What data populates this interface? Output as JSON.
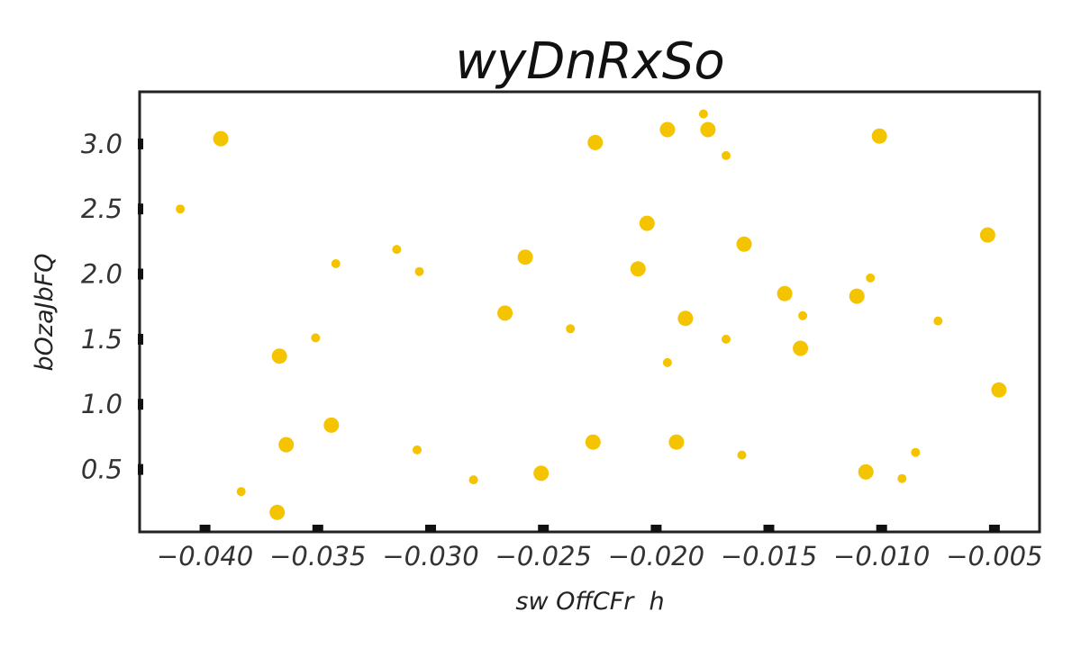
{
  "chart_data": {
    "type": "scatter",
    "title": "wyDnRxSo",
    "xlabel": "sw OffCFr  h",
    "ylabel": "bOzaJbFQ",
    "xlim": [
      -0.0429,
      -0.003
    ],
    "ylim": [
      0.02,
      3.4
    ],
    "xticks": [
      -0.04,
      -0.035,
      -0.03,
      -0.025,
      -0.02,
      -0.015,
      -0.01,
      -0.005
    ],
    "xtick_labels": [
      "−0.040",
      "−0.035",
      "−0.030",
      "−0.025",
      "−0.020",
      "−0.015",
      "−0.010",
      "−0.005"
    ],
    "yticks": [
      0.5,
      1.0,
      1.5,
      2.0,
      2.5,
      3.0
    ],
    "ytick_labels": [
      "0.5",
      "1.0",
      "1.5",
      "2.0",
      "2.5",
      "3.0"
    ],
    "grid": false,
    "marker_color": "#f5c400",
    "points": [
      {
        "x": -0.0393,
        "y": 3.04,
        "size": "large"
      },
      {
        "x": -0.0411,
        "y": 2.5,
        "size": "small"
      },
      {
        "x": -0.0384,
        "y": 0.33,
        "size": "small"
      },
      {
        "x": -0.0368,
        "y": 0.17,
        "size": "large"
      },
      {
        "x": -0.0367,
        "y": 1.37,
        "size": "large"
      },
      {
        "x": -0.0364,
        "y": 0.69,
        "size": "large"
      },
      {
        "x": -0.0351,
        "y": 1.51,
        "size": "small"
      },
      {
        "x": -0.0344,
        "y": 0.84,
        "size": "large"
      },
      {
        "x": -0.0342,
        "y": 2.08,
        "size": "small"
      },
      {
        "x": -0.0315,
        "y": 2.19,
        "size": "small"
      },
      {
        "x": -0.0306,
        "y": 0.65,
        "size": "small"
      },
      {
        "x": -0.0305,
        "y": 2.02,
        "size": "small"
      },
      {
        "x": -0.0281,
        "y": 0.42,
        "size": "small"
      },
      {
        "x": -0.0267,
        "y": 1.7,
        "size": "large"
      },
      {
        "x": -0.0258,
        "y": 2.13,
        "size": "large"
      },
      {
        "x": -0.0251,
        "y": 0.47,
        "size": "large"
      },
      {
        "x": -0.0238,
        "y": 1.58,
        "size": "small"
      },
      {
        "x": -0.0227,
        "y": 3.01,
        "size": "large"
      },
      {
        "x": -0.0228,
        "y": 0.71,
        "size": "large"
      },
      {
        "x": -0.0208,
        "y": 2.04,
        "size": "large"
      },
      {
        "x": -0.0204,
        "y": 2.39,
        "size": "large"
      },
      {
        "x": -0.0195,
        "y": 3.11,
        "size": "large"
      },
      {
        "x": -0.0195,
        "y": 1.32,
        "size": "small"
      },
      {
        "x": -0.0191,
        "y": 0.71,
        "size": "large"
      },
      {
        "x": -0.0187,
        "y": 1.66,
        "size": "large"
      },
      {
        "x": -0.0179,
        "y": 3.23,
        "size": "small"
      },
      {
        "x": -0.0177,
        "y": 3.11,
        "size": "large"
      },
      {
        "x": -0.0169,
        "y": 2.91,
        "size": "small"
      },
      {
        "x": -0.0169,
        "y": 1.5,
        "size": "small"
      },
      {
        "x": -0.0161,
        "y": 2.23,
        "size": "large"
      },
      {
        "x": -0.0162,
        "y": 0.61,
        "size": "small"
      },
      {
        "x": -0.0143,
        "y": 1.85,
        "size": "large"
      },
      {
        "x": -0.0136,
        "y": 1.43,
        "size": "large"
      },
      {
        "x": -0.0135,
        "y": 1.68,
        "size": "small"
      },
      {
        "x": -0.0111,
        "y": 1.83,
        "size": "large"
      },
      {
        "x": -0.0107,
        "y": 0.48,
        "size": "large"
      },
      {
        "x": -0.0105,
        "y": 1.97,
        "size": "small"
      },
      {
        "x": -0.0101,
        "y": 3.06,
        "size": "large"
      },
      {
        "x": -0.0091,
        "y": 0.43,
        "size": "small"
      },
      {
        "x": -0.0085,
        "y": 0.63,
        "size": "small"
      },
      {
        "x": -0.0075,
        "y": 1.64,
        "size": "small"
      },
      {
        "x": -0.0053,
        "y": 2.3,
        "size": "large"
      },
      {
        "x": -0.0048,
        "y": 1.11,
        "size": "large"
      }
    ]
  }
}
